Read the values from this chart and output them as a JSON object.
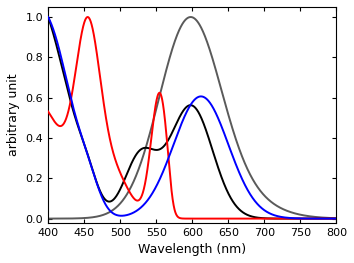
{
  "xlim": [
    400,
    800
  ],
  "ylim": [
    -0.02,
    1.05
  ],
  "xlabel": "Wavelength (nm)",
  "ylabel": "arbitrary unit",
  "xticks": [
    400,
    450,
    500,
    550,
    600,
    650,
    700,
    750,
    800
  ],
  "yticks": [
    0.0,
    0.2,
    0.4,
    0.6,
    0.8,
    1.0
  ],
  "colors": {
    "blue": "#0000ff",
    "red": "#ff0000",
    "black": "#000000",
    "gray": "#5a5a5a"
  },
  "linewidth": 1.4,
  "background": "#ffffff"
}
